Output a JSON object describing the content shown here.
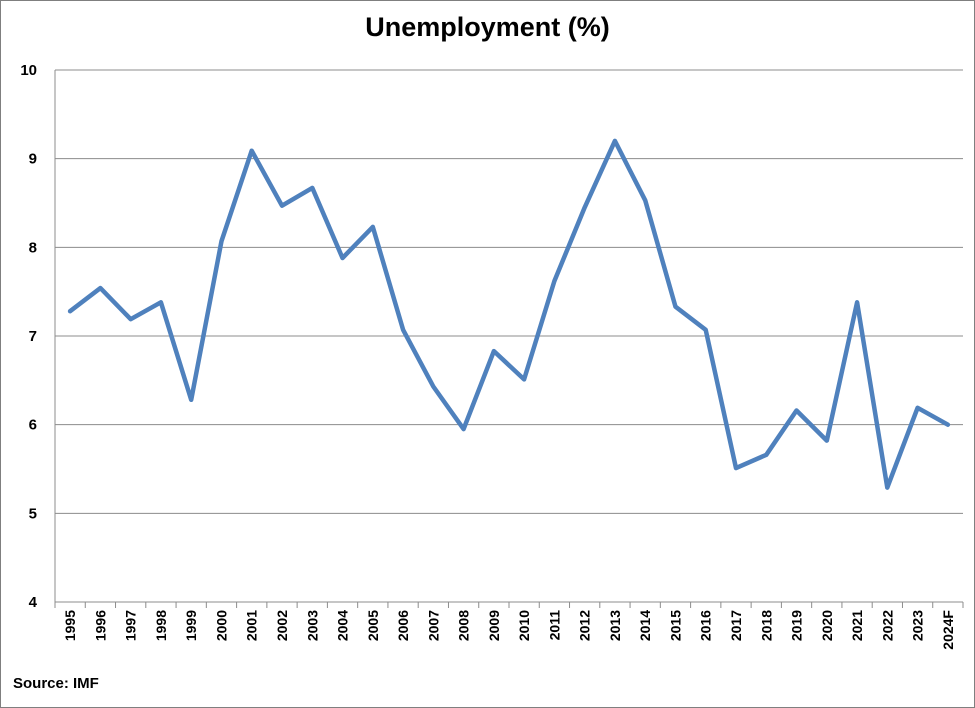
{
  "chart_data": {
    "type": "line",
    "title": "Unemployment (%)",
    "source": "Source: IMF",
    "xlabel": "",
    "ylabel": "",
    "ylim": [
      4,
      10
    ],
    "yticks": [
      "4",
      "5",
      "6",
      "7",
      "8",
      "9",
      "10"
    ],
    "grid": "horizontal",
    "legend": "none",
    "line_color": "#4F81BD",
    "categories": [
      "1995",
      "1996",
      "1997",
      "1998",
      "1999",
      "2000",
      "2001",
      "2002",
      "2003",
      "2004",
      "2005",
      "2006",
      "2007",
      "2008",
      "2009",
      "2010",
      "2011",
      "2012",
      "2013",
      "2014",
      "2015",
      "2016",
      "2017",
      "2018",
      "2019",
      "2020",
      "2021",
      "2022",
      "2023",
      "2024F"
    ],
    "series": [
      {
        "values": [
          7.28,
          7.54,
          7.19,
          7.38,
          6.28,
          8.07,
          9.09,
          8.47,
          8.67,
          7.88,
          8.23,
          7.07,
          6.43,
          5.95,
          6.83,
          6.51,
          7.62,
          8.45,
          9.2,
          8.53,
          7.33,
          7.07,
          5.51,
          5.66,
          6.16,
          5.82,
          7.38,
          5.29,
          6.19,
          6.0
        ]
      }
    ]
  }
}
